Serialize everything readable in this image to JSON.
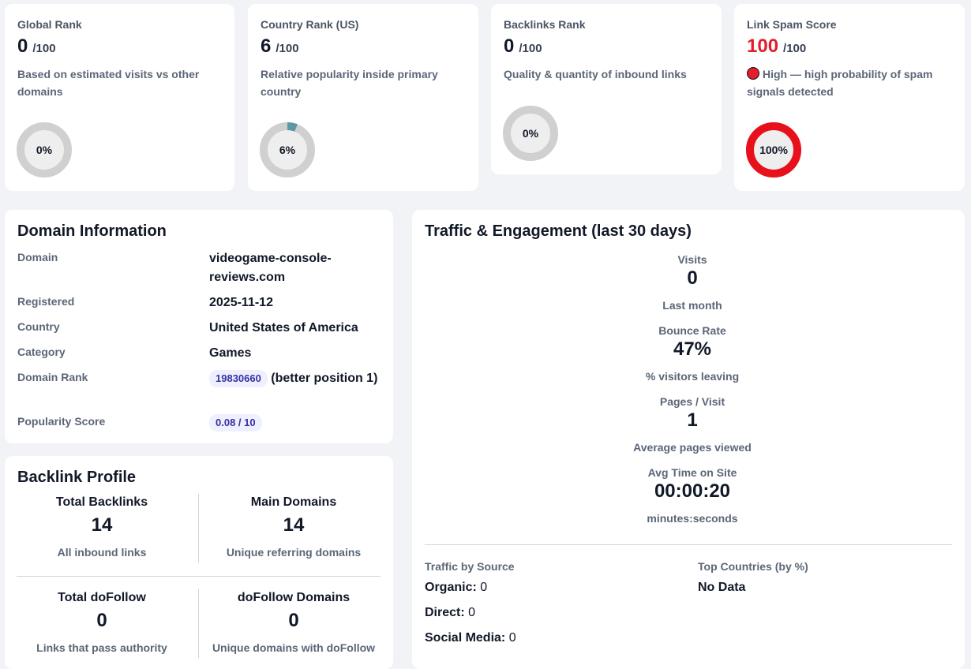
{
  "rank_cards": [
    {
      "title": "Global Rank",
      "value": "0",
      "suffix": "/100",
      "description": "Based on estimated visits vs other domains",
      "gauge_label": "0%",
      "gauge_fraction": 0,
      "gauge_color": "#5a9aa6"
    },
    {
      "title": "Country Rank (US)",
      "value": "6",
      "suffix": "/100",
      "description": "Relative popularity inside primary country",
      "gauge_label": "6%",
      "gauge_fraction": 0.06,
      "gauge_color": "#5a9aa6"
    },
    {
      "title": "Backlinks Rank",
      "value": "0",
      "suffix": "/100",
      "description": "Quality & quantity of inbound links",
      "gauge_label": "0%",
      "gauge_fraction": 0,
      "gauge_color": "#5a9aa6"
    },
    {
      "title": "Link Spam Score",
      "value": "100",
      "suffix": "/100",
      "description": "High — high probability of spam signals detected",
      "gauge_label": "100%",
      "gauge_fraction": 1,
      "gauge_color": "#e8101b"
    }
  ],
  "domain_info": {
    "title": "Domain Information",
    "rows": [
      {
        "key": "Domain",
        "value": "videogame-console-reviews.com"
      },
      {
        "key": "Registered",
        "value": "2025-11-12"
      },
      {
        "key": "Country",
        "value": "United States of America"
      },
      {
        "key": "Category",
        "value": "Games"
      },
      {
        "key": "Domain Rank",
        "pill": "19830660",
        "value": "(better position 1)"
      },
      {
        "key": "Popularity Score",
        "pill": "0.08 / 10"
      }
    ]
  },
  "backlink_profile": {
    "title": "Backlink Profile",
    "cells": [
      {
        "head": "Total Backlinks",
        "value": "14",
        "sub": "All inbound links"
      },
      {
        "head": "Main Domains",
        "value": "14",
        "sub": "Unique referring domains"
      },
      {
        "head": "Total doFollow",
        "value": "0",
        "sub": "Links that pass authority"
      },
      {
        "head": "doFollow Domains",
        "value": "0",
        "sub": "Unique domains with doFollow"
      }
    ]
  },
  "traffic": {
    "title": "Traffic & Engagement (last 30 days)",
    "metrics": [
      {
        "label": "Visits",
        "value": "0",
        "sub": "Last month"
      },
      {
        "label": "Bounce Rate",
        "value": "47%",
        "sub": "% visitors leaving"
      },
      {
        "label": "Pages / Visit",
        "value": "1",
        "sub": "Average pages viewed"
      },
      {
        "label": "Avg Time on Site",
        "value": "00:00:20",
        "sub": "minutes:seconds"
      }
    ],
    "source_title": "Traffic by Source",
    "sources": [
      {
        "name": "Organic:",
        "value": "0"
      },
      {
        "name": "Direct:",
        "value": "0"
      },
      {
        "name": "Social Media:",
        "value": "0"
      }
    ],
    "countries_title": "Top Countries (by %)",
    "countries_value": "No Data"
  }
}
